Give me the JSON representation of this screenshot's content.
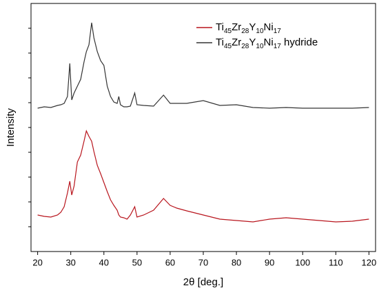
{
  "chart_data": {
    "type": "line",
    "xlabel": "2θ [deg.]",
    "ylabel": "Intensity",
    "x": [
      20,
      22,
      24,
      26,
      27,
      28,
      29,
      29.7,
      30.3,
      31,
      32,
      33,
      34,
      34.7,
      35.5,
      36.3,
      37,
      38,
      39,
      40,
      41,
      42,
      43,
      44,
      44.5,
      45,
      46,
      47,
      48,
      49.3,
      50,
      52,
      55,
      58,
      60,
      62,
      65,
      70,
      75,
      80,
      85,
      90,
      95,
      100,
      105,
      110,
      115,
      120
    ],
    "series": [
      {
        "name": "Ti45Zr28Y10Ni17",
        "color": "#b8141c",
        "values": [
          53,
          51,
          50,
          53,
          57,
          65,
          85,
          102,
          82,
          95,
          130,
          140,
          160,
          175,
          167,
          160,
          145,
          125,
          113,
          100,
          87,
          75,
          67,
          60,
          53,
          50,
          49,
          47,
          53,
          65,
          50,
          53,
          60,
          77,
          67,
          63,
          59,
          53,
          47,
          45,
          43,
          47,
          49,
          47,
          45,
          43,
          44,
          47
        ]
      },
      {
        "name": "Ti45Zr28Y10Ni17 hydride",
        "color": "#333333",
        "values": [
          208,
          210,
          209,
          212,
          213,
          215,
          225,
          273,
          220,
          230,
          240,
          250,
          275,
          290,
          300,
          332,
          310,
          290,
          277,
          270,
          240,
          225,
          217,
          215,
          225,
          213,
          210,
          210,
          211,
          230,
          213,
          212,
          211,
          227,
          215,
          215,
          215,
          219,
          212,
          213,
          209,
          208,
          209,
          208,
          208,
          208,
          208,
          209
        ]
      }
    ],
    "xlim": [
      18,
      122
    ],
    "xticks": [
      20,
      30,
      40,
      50,
      60,
      70,
      80,
      90,
      100,
      110,
      120
    ],
    "ylim": [
      0,
      360
    ],
    "legend": "upper right"
  }
}
